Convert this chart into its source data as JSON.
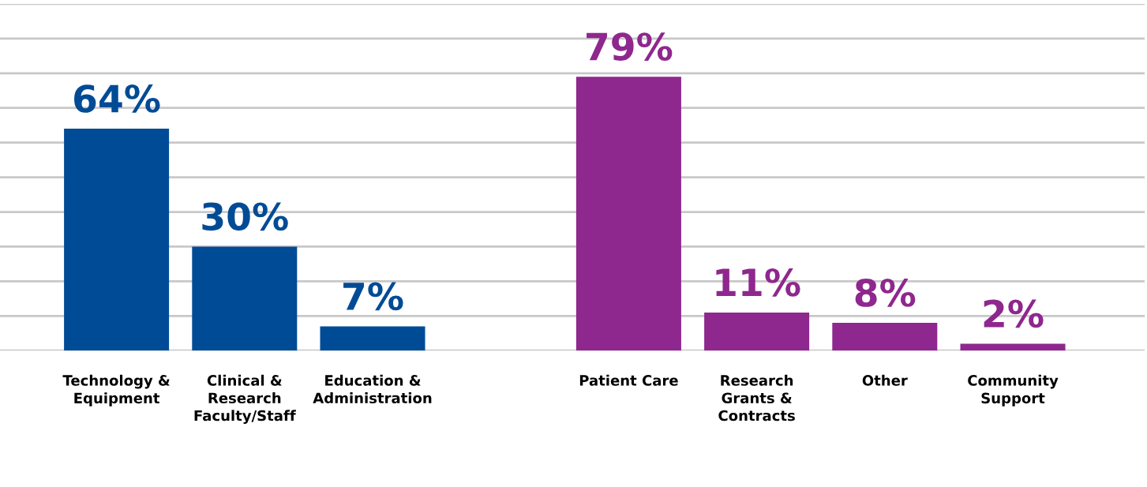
{
  "chart_data": {
    "type": "bar",
    "categories": [
      "Technology &\nEquipment",
      "Clinical &\nResearch\nFaculty/Staff",
      "Education &\nAdministration",
      null,
      "Patient Care",
      "Research\nGrants &\nContracts",
      "Other",
      "Community\nSupport"
    ],
    "series": [
      {
        "color": "#004b96",
        "values": [
          64,
          30,
          7,
          null,
          null,
          null,
          null,
          null
        ],
        "value_labels": [
          "64%",
          "30%",
          "7%",
          null,
          null,
          null,
          null,
          null
        ]
      },
      {
        "color": "#8e278e",
        "values": [
          null,
          null,
          null,
          null,
          79,
          11,
          8,
          2
        ],
        "value_labels": [
          null,
          null,
          null,
          null,
          "79%",
          "11%",
          "8%",
          "2%"
        ]
      }
    ],
    "ylim": [
      0,
      100
    ],
    "yticks": [
      {
        "value": 0,
        "label": null
      },
      {
        "value": 10,
        "label": null
      },
      {
        "value": 20,
        "label": null
      },
      {
        "value": 30,
        "label": null
      },
      {
        "value": 40,
        "label": null
      },
      {
        "value": 50,
        "label": null
      },
      {
        "value": 60,
        "label": null
      },
      {
        "value": 70,
        "label": null
      },
      {
        "value": 80,
        "label": null
      },
      {
        "value": 90,
        "label": null
      },
      {
        "value": 100,
        "label": null
      }
    ],
    "tick_labels": "x",
    "grid": "y",
    "legend": false
  }
}
